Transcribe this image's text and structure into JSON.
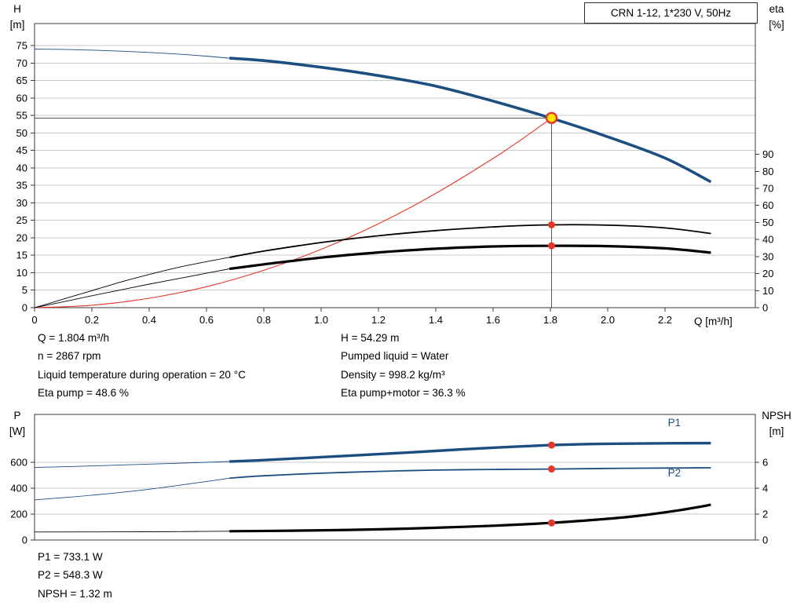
{
  "window": {
    "background": "#ffffff"
  },
  "colors": {
    "curve_blue": "#1c4e80",
    "curve_red": "#e5352b",
    "curve_black": "#000000",
    "duty_fill": "#ffe600",
    "grid": "#c9c9c9",
    "axis": "#3a3a3a",
    "crosshair": "#5a5a5a",
    "text": "#000000"
  },
  "readouts": {
    "top_left": [
      "Q = 1.804 m³/h",
      "n = 2867 rpm",
      "Liquid temperature during operation = 20 °C",
      "Eta pump = 48.6 %"
    ],
    "top_right": [
      "H = 54.29 m",
      "Pumped liquid = Water",
      "Density = 998.2 kg/m³",
      "Eta pump+motor = 36.3 %"
    ],
    "bottom": [
      "P1 = 733.1 W",
      "P2 = 548.3 W",
      "NPSH = 1.32 m"
    ]
  },
  "chart_data": [
    {
      "id": "qh-eta-chart",
      "type": "line",
      "title": "CRN 1-12, 1*230 V, 50Hz",
      "x_axis": {
        "label": "Q [m³/h]",
        "min": 0,
        "max": 2.515,
        "ticks": [
          0,
          0.2,
          0.4,
          0.6,
          0.8,
          1.0,
          1.2,
          1.4,
          1.6,
          1.8,
          2.0,
          2.2
        ]
      },
      "y_left": {
        "label": [
          "H",
          "[m]"
        ],
        "min": 0,
        "max": 81.3,
        "ticks": [
          0,
          5,
          10,
          15,
          20,
          25,
          30,
          35,
          40,
          45,
          50,
          55,
          60,
          65,
          70,
          75
        ],
        "grid": true
      },
      "y_right": {
        "label": [
          "eta",
          "[%]"
        ],
        "min": 0,
        "max": 166.7,
        "ticks": [
          0,
          10,
          20,
          30,
          40,
          50,
          60,
          70,
          80,
          90
        ]
      },
      "duty_point": {
        "q": 1.804,
        "h": 54.29,
        "fill": "#ffe600",
        "ring": "#e5352b"
      },
      "series": [
        {
          "name": "qh-curve-extrapolated",
          "axis": "left",
          "color": "#1c4e80",
          "width": 0.9,
          "points": [
            [
              0,
              74.0
            ],
            [
              0.15,
              73.8
            ],
            [
              0.3,
              73.4
            ],
            [
              0.45,
              72.8
            ],
            [
              0.58,
              72.1
            ],
            [
              0.68,
              71.4
            ]
          ]
        },
        {
          "name": "qh-curve",
          "axis": "left",
          "color": "#1c4e80",
          "width": 3.6,
          "points": [
            [
              0.68,
              71.4
            ],
            [
              0.8,
              70.7
            ],
            [
              1.0,
              68.8
            ],
            [
              1.2,
              66.4
            ],
            [
              1.4,
              63.4
            ],
            [
              1.6,
              59.1
            ],
            [
              1.8,
              54.3
            ],
            [
              2.0,
              48.9
            ],
            [
              2.2,
              42.8
            ],
            [
              2.36,
              36.0
            ]
          ]
        },
        {
          "name": "system-curve",
          "axis": "left",
          "color": "#e5352b",
          "width": 1.1,
          "points": [
            [
              0,
              0
            ],
            [
              0.2,
              0.7
            ],
            [
              0.4,
              2.7
            ],
            [
              0.6,
              6.0
            ],
            [
              0.8,
              10.7
            ],
            [
              1.0,
              16.7
            ],
            [
              1.2,
              24.0
            ],
            [
              1.4,
              32.7
            ],
            [
              1.6,
              42.7
            ],
            [
              1.7,
              48.2
            ],
            [
              1.804,
              54.29
            ]
          ]
        },
        {
          "name": "eta-pump-curve-extrapolated",
          "axis": "right",
          "color": "#000000",
          "width": 0.9,
          "points": [
            [
              0,
              0
            ],
            [
              0.1,
              5.0
            ],
            [
              0.2,
              10.0
            ],
            [
              0.3,
              15.0
            ],
            [
              0.4,
              19.5
            ],
            [
              0.5,
              23.6
            ],
            [
              0.6,
              27.0
            ],
            [
              0.68,
              29.5
            ]
          ]
        },
        {
          "name": "eta-pump-curve",
          "axis": "right",
          "color": "#000000",
          "width": 1.8,
          "points": [
            [
              0.68,
              29.5
            ],
            [
              0.8,
              33.2
            ],
            [
              1.0,
              38.2
            ],
            [
              1.2,
              42.2
            ],
            [
              1.4,
              45.2
            ],
            [
              1.6,
              47.4
            ],
            [
              1.8,
              48.6
            ],
            [
              2.0,
              48.4
            ],
            [
              2.2,
              46.8
            ],
            [
              2.36,
              43.5
            ]
          ]
        },
        {
          "name": "eta-pump-motor-curve-extrapolated",
          "axis": "right",
          "color": "#000000",
          "width": 0.9,
          "points": [
            [
              0,
              0
            ],
            [
              0.1,
              3.4
            ],
            [
              0.2,
              7.0
            ],
            [
              0.3,
              10.4
            ],
            [
              0.4,
              13.8
            ],
            [
              0.5,
              17.0
            ],
            [
              0.6,
              20.2
            ],
            [
              0.68,
              22.8
            ]
          ]
        },
        {
          "name": "eta-pump-motor-curve",
          "axis": "right",
          "color": "#000000",
          "width": 3.2,
          "points": [
            [
              0.68,
              22.8
            ],
            [
              0.8,
              25.4
            ],
            [
              1.0,
              29.4
            ],
            [
              1.2,
              32.4
            ],
            [
              1.4,
              34.6
            ],
            [
              1.6,
              35.9
            ],
            [
              1.8,
              36.3
            ],
            [
              2.0,
              36.1
            ],
            [
              2.2,
              34.8
            ],
            [
              2.36,
              32.3
            ]
          ]
        }
      ],
      "markers": [
        {
          "name": "eta-pump-duty-dot",
          "axis": "right",
          "q": 1.804,
          "v": 48.6,
          "r": 4.5,
          "fill": "#e5352b"
        },
        {
          "name": "eta-pump-motor-duty-dot",
          "axis": "right",
          "q": 1.804,
          "v": 36.3,
          "r": 4.5,
          "fill": "#e5352b"
        }
      ],
      "labels": []
    },
    {
      "id": "power-npsh-chart",
      "type": "line",
      "title": "",
      "x_axis": {
        "label": "",
        "min": 0,
        "max": 2.515,
        "ticks": []
      },
      "y_left": {
        "label": [
          "P",
          "[W]"
        ],
        "min": 0,
        "max": 970,
        "ticks": [
          0,
          200,
          400,
          600
        ],
        "grid": true
      },
      "y_right": {
        "label": [
          "NPSH",
          "[m]"
        ],
        "min": 0,
        "max": 9.7,
        "ticks": [
          0,
          2,
          4,
          6
        ]
      },
      "series": [
        {
          "name": "p1-curve-extrapolated",
          "axis": "left",
          "color": "#1c4e80",
          "width": 0.9,
          "points": [
            [
              0,
              560
            ],
            [
              0.2,
              572
            ],
            [
              0.4,
              586
            ],
            [
              0.6,
              600
            ],
            [
              0.68,
              606
            ]
          ]
        },
        {
          "name": "p1-curve",
          "axis": "left",
          "color": "#1c4e80",
          "width": 3.4,
          "points": [
            [
              0.68,
              606
            ],
            [
              0.8,
              617
            ],
            [
              1.0,
              640
            ],
            [
              1.2,
              663
            ],
            [
              1.4,
              688
            ],
            [
              1.6,
              713
            ],
            [
              1.8,
              733
            ],
            [
              1.9,
              739
            ],
            [
              2.0,
              743
            ],
            [
              2.2,
              747
            ],
            [
              2.36,
              748
            ]
          ]
        },
        {
          "name": "p2-curve-extrapolated",
          "axis": "left",
          "color": "#1c4e80",
          "width": 0.9,
          "points": [
            [
              0,
              310
            ],
            [
              0.2,
              346
            ],
            [
              0.4,
              392
            ],
            [
              0.6,
              452
            ],
            [
              0.68,
              478
            ]
          ]
        },
        {
          "name": "p2-curve",
          "axis": "left",
          "color": "#1c4e80",
          "width": 1.8,
          "points": [
            [
              0.68,
              478
            ],
            [
              0.8,
              496
            ],
            [
              1.0,
              516
            ],
            [
              1.2,
              530
            ],
            [
              1.4,
              540
            ],
            [
              1.6,
              545
            ],
            [
              1.8,
              548
            ],
            [
              2.0,
              553
            ],
            [
              2.2,
              556
            ],
            [
              2.36,
              558
            ]
          ]
        },
        {
          "name": "npsh-curve-extrapolated",
          "axis": "right",
          "color": "#000000",
          "width": 0.9,
          "points": [
            [
              0,
              0.62
            ],
            [
              0.3,
              0.63
            ],
            [
              0.5,
              0.65
            ],
            [
              0.68,
              0.68
            ]
          ]
        },
        {
          "name": "npsh-curve",
          "axis": "right",
          "color": "#000000",
          "width": 3.2,
          "points": [
            [
              0.68,
              0.68
            ],
            [
              0.9,
              0.72
            ],
            [
              1.1,
              0.78
            ],
            [
              1.3,
              0.88
            ],
            [
              1.5,
              1.02
            ],
            [
              1.65,
              1.15
            ],
            [
              1.8,
              1.32
            ],
            [
              1.95,
              1.55
            ],
            [
              2.1,
              1.85
            ],
            [
              2.25,
              2.3
            ],
            [
              2.36,
              2.72
            ]
          ]
        }
      ],
      "markers": [
        {
          "name": "p1-duty-dot",
          "axis": "left",
          "q": 1.804,
          "v": 733.1,
          "r": 4.5,
          "fill": "#e5352b"
        },
        {
          "name": "p2-duty-dot",
          "axis": "left",
          "q": 1.804,
          "v": 548.3,
          "r": 4.5,
          "fill": "#e5352b"
        },
        {
          "name": "npsh-duty-dot",
          "axis": "right",
          "q": 1.804,
          "v": 1.32,
          "r": 4.5,
          "fill": "#e5352b"
        }
      ],
      "labels": [
        {
          "name": "p1-curve-label",
          "text": "P1",
          "axis": "left",
          "q": 2.21,
          "v": 880,
          "color": "#1c4e80"
        },
        {
          "name": "p2-curve-label",
          "text": "P2",
          "axis": "left",
          "q": 2.21,
          "v": 490,
          "color": "#1c4e80"
        }
      ]
    }
  ]
}
